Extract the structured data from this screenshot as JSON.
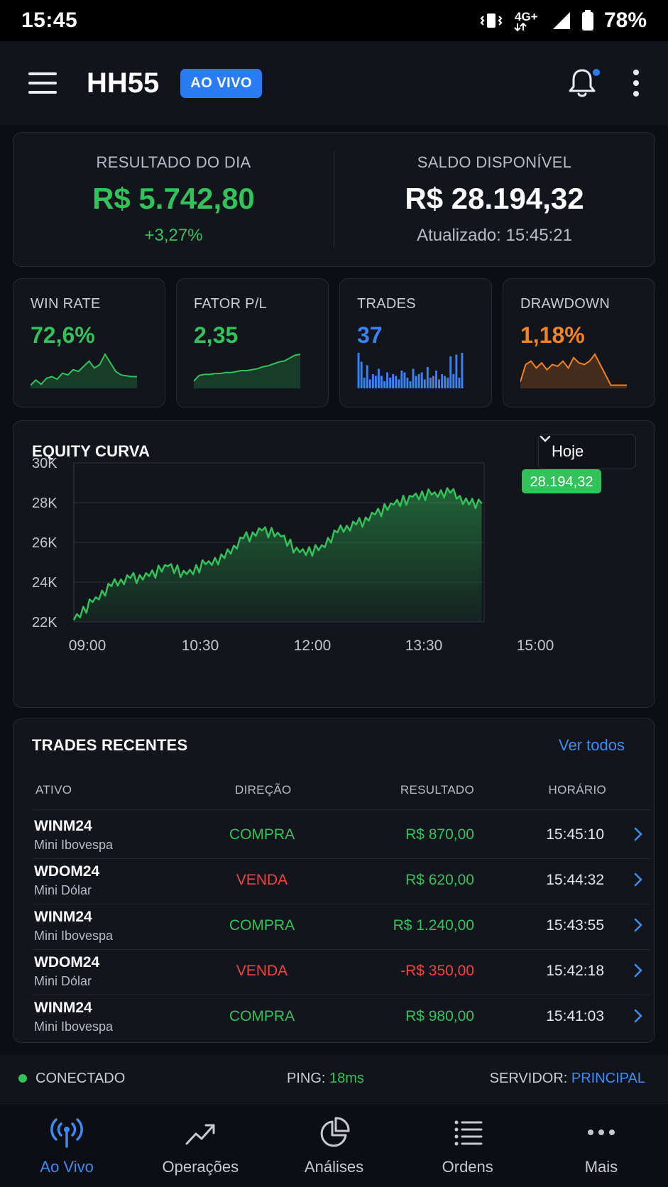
{
  "status_bar": {
    "time": "15:45",
    "network": "4G+",
    "battery": "78%"
  },
  "app_bar": {
    "title": "HH55",
    "badge": "AO VIVO"
  },
  "summary": {
    "result": {
      "label": "RESULTADO DO DIA",
      "value": "R$ 5.742,80",
      "change": "+3,27%"
    },
    "balance": {
      "label": "SALDO DISPONÍVEL",
      "value": "R$ 28.194,32",
      "updated": "Atualizado: 15:45:21"
    }
  },
  "metrics": [
    {
      "label": "WIN RATE",
      "value": "72,6%",
      "color": "#33c25a",
      "sparkline_type": "area",
      "sparkline": [
        2,
        8,
        3,
        10,
        12,
        9,
        16,
        14,
        20,
        18,
        24,
        30,
        22,
        26,
        38,
        28,
        18,
        14,
        13,
        12,
        12
      ]
    },
    {
      "label": "FATOR P/L",
      "value": "2,35",
      "color": "#33c25a",
      "sparkline_type": "area",
      "sparkline": [
        6,
        12,
        13,
        13,
        14,
        14,
        15,
        15,
        16,
        17,
        17,
        18,
        19,
        21,
        22,
        24,
        26,
        27,
        30,
        33,
        34
      ]
    },
    {
      "label": "TRADES",
      "value": "37",
      "color": "#3b82f6",
      "sparkline_type": "bars",
      "sparkline": [
        40,
        30,
        12,
        26,
        10,
        16,
        14,
        22,
        14,
        8,
        18,
        12,
        16,
        14,
        10,
        20,
        18,
        12,
        8,
        22,
        14,
        16,
        18,
        10,
        24,
        12,
        14,
        20,
        10,
        16,
        14,
        12,
        36,
        16,
        38,
        12,
        40
      ]
    },
    {
      "label": "DRAWDOWN",
      "value": "1,18%",
      "color": "#f58220",
      "sparkline_type": "area",
      "sparkline": [
        6,
        26,
        30,
        22,
        28,
        20,
        26,
        24,
        30,
        22,
        34,
        28,
        26,
        30,
        38,
        26,
        14,
        2,
        2,
        2,
        2
      ]
    }
  ],
  "equity": {
    "title": "EQUITY CURVA",
    "period": "Hoje",
    "current_label": "28.194,32",
    "color": "#33c25a"
  },
  "chart_data": {
    "type": "area",
    "title": "EQUITY CURVA",
    "xlabel": "",
    "ylabel": "",
    "x_tick_labels": [
      "09:00",
      "10:30",
      "12:00",
      "13:30",
      "15:00"
    ],
    "y_tick_labels": [
      "30K",
      "28K",
      "26K",
      "24K",
      "22K"
    ],
    "xlim": [
      "09:00",
      "15:15"
    ],
    "ylim": [
      22000,
      30000
    ],
    "grid": true,
    "series": [
      {
        "x": [
          "09:00",
          "09:15",
          "09:30",
          "09:45",
          "10:00",
          "10:15",
          "10:30",
          "10:45",
          "11:00",
          "11:15",
          "11:30",
          "11:45",
          "12:00",
          "12:15",
          "12:30",
          "12:45",
          "13:00",
          "13:15",
          "13:30",
          "13:45",
          "14:00",
          "14:15",
          "14:30",
          "14:45",
          "15:00",
          "15:15"
        ],
        "values": [
          22100,
          23000,
          23800,
          24200,
          24300,
          24800,
          24400,
          24900,
          25200,
          26200,
          26600,
          26300,
          25500,
          25600,
          26500,
          26900,
          27400,
          27900,
          28300,
          28400,
          28500,
          27900,
          28200,
          28500,
          28350,
          28194
        ]
      }
    ],
    "last_value_label": "28.194,32"
  },
  "trades": {
    "title": "TRADES RECENTES",
    "view_all": "Ver todos",
    "columns": [
      "ATIVO",
      "DIREÇÃO",
      "RESULTADO",
      "HORÁRIO"
    ],
    "rows": [
      {
        "asset": "WINM24",
        "name": "Mini Ibovespa",
        "direction": "COMPRA",
        "result": "R$ 870,00",
        "time": "15:45:10",
        "dir_color": "#33c25a",
        "res_color": "#33c25a"
      },
      {
        "asset": "WDOM24",
        "name": "Mini Dólar",
        "direction": "VENDA",
        "result": "R$ 620,00",
        "time": "15:44:32",
        "dir_color": "#ef4444",
        "res_color": "#33c25a"
      },
      {
        "asset": "WINM24",
        "name": "Mini Ibovespa",
        "direction": "COMPRA",
        "result": "R$ 1.240,00",
        "time": "15:43:55",
        "dir_color": "#33c25a",
        "res_color": "#33c25a"
      },
      {
        "asset": "WDOM24",
        "name": "Mini Dólar",
        "direction": "VENDA",
        "result": "-R$ 350,00",
        "time": "15:42:18",
        "dir_color": "#ef4444",
        "res_color": "#ef4444"
      },
      {
        "asset": "WINM24",
        "name": "Mini Ibovespa",
        "direction": "COMPRA",
        "result": "R$ 980,00",
        "time": "15:41:03",
        "dir_color": "#33c25a",
        "res_color": "#33c25a"
      }
    ]
  },
  "connection": {
    "status": "CONECTADO",
    "ping_label": "PING:",
    "ping_value": "18ms",
    "server_label": "SERVIDOR:",
    "server_value": "PRINCIPAL"
  },
  "nav": [
    {
      "label": "Ao Vivo",
      "icon": "broadcast-icon",
      "active": true
    },
    {
      "label": "Operações",
      "icon": "trend-up-icon",
      "active": false
    },
    {
      "label": "Análises",
      "icon": "pie-chart-icon",
      "active": false
    },
    {
      "label": "Ordens",
      "icon": "list-icon",
      "active": false
    },
    {
      "label": "Mais",
      "icon": "more-dots-icon",
      "active": false
    }
  ],
  "colors": {
    "accent": "#2b7cf4",
    "positive": "#33c25a",
    "negative": "#ef4444",
    "warning": "#f58220"
  }
}
